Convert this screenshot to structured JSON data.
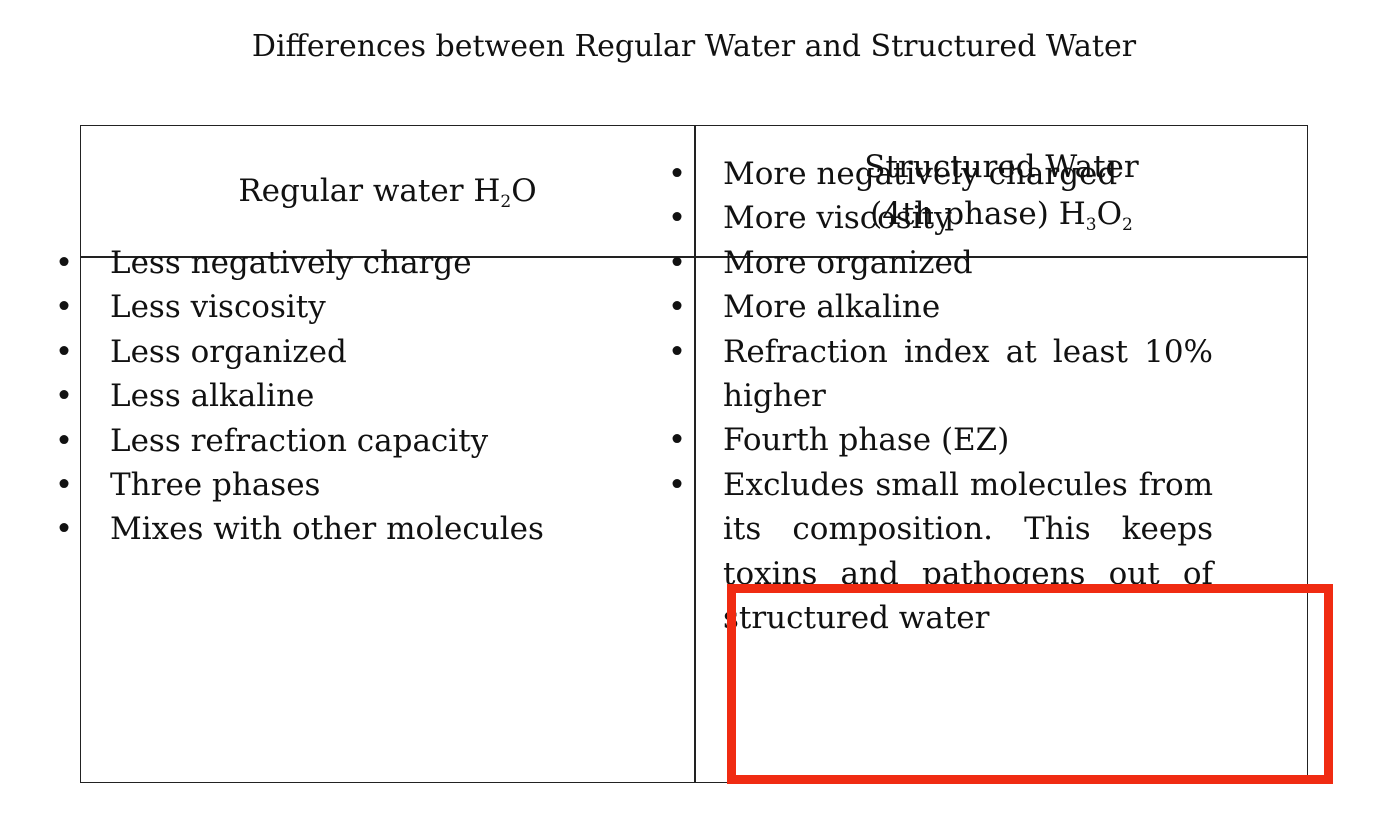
{
  "title": "Differences between Regular Water and Structured Water",
  "table": {
    "left_header": {
      "text_before": "Regular water H",
      "sub1": "2",
      "text_after": "O"
    },
    "right_header": {
      "line1": "Structured Water",
      "line2_before": "(4th phase) H",
      "sub1": "3",
      "mid": "O",
      "sub2": "2"
    },
    "left_items": [
      "Less negatively charge",
      "Less viscosity",
      "Less organized",
      "Less alkaline",
      "Less refraction capacity",
      "Three phases",
      "Mixes with other molecules"
    ],
    "right_items": [
      "More negatively charged",
      "More viscosity",
      "More organized",
      "More alkaline",
      "Refraction index at least 10% higher",
      "Fourth phase (EZ)",
      "Excludes small molecules from its composition. This keeps toxins and pathogens out of structured water"
    ],
    "bullet_symbol": "•"
  },
  "highlight": {
    "color": "#f02b12",
    "target": "Excludes small molecules item"
  }
}
